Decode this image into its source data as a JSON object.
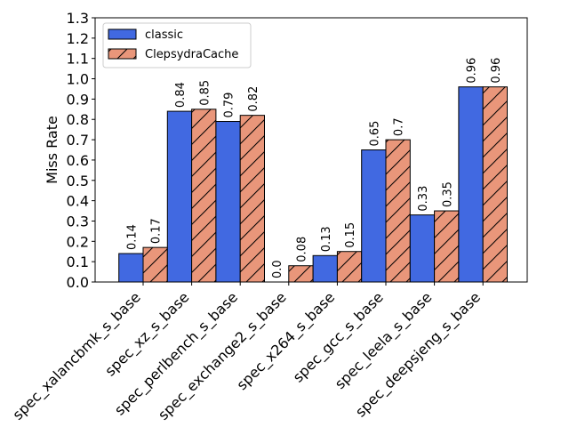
{
  "chart_data": {
    "type": "bar",
    "title": "",
    "xlabel": "",
    "ylabel": "Miss Rate",
    "ylim": [
      0,
      1.3
    ],
    "yticks": [
      "0.0",
      "0.1",
      "0.2",
      "0.3",
      "0.4",
      "0.5",
      "0.6",
      "0.7",
      "0.8",
      "0.9",
      "1.0",
      "1.1",
      "1.2",
      "1.3"
    ],
    "categories": [
      "spec_xalancbmk_s_base",
      "spec_xz_s_base",
      "spec_perlbench_s_base",
      "spec_exchange2_s_base",
      "spec_x264_s_base",
      "spec_gcc_s_base",
      "spec_leela_s_base",
      "spec_deepsjeng_s_base"
    ],
    "series": [
      {
        "name": "classic",
        "color": "#4169e1",
        "hatch": "none",
        "values": [
          0.14,
          0.84,
          0.79,
          0.0,
          0.13,
          0.65,
          0.33,
          0.96
        ],
        "labels": [
          "0.14",
          "0.84",
          "0.79",
          "0.0",
          "0.13",
          "0.65",
          "0.33",
          "0.96"
        ]
      },
      {
        "name": "ClepsydraCache",
        "color": "#e9967a",
        "hatch": "diagonal",
        "values": [
          0.17,
          0.85,
          0.82,
          0.08,
          0.15,
          0.7,
          0.35,
          0.96
        ],
        "labels": [
          "0.17",
          "0.85",
          "0.82",
          "0.08",
          "0.15",
          "0.7",
          "0.35",
          "0.96"
        ]
      }
    ],
    "legend": {
      "position": "top-left",
      "entries": [
        "classic",
        "ClepsydraCache"
      ]
    },
    "grid": false
  }
}
